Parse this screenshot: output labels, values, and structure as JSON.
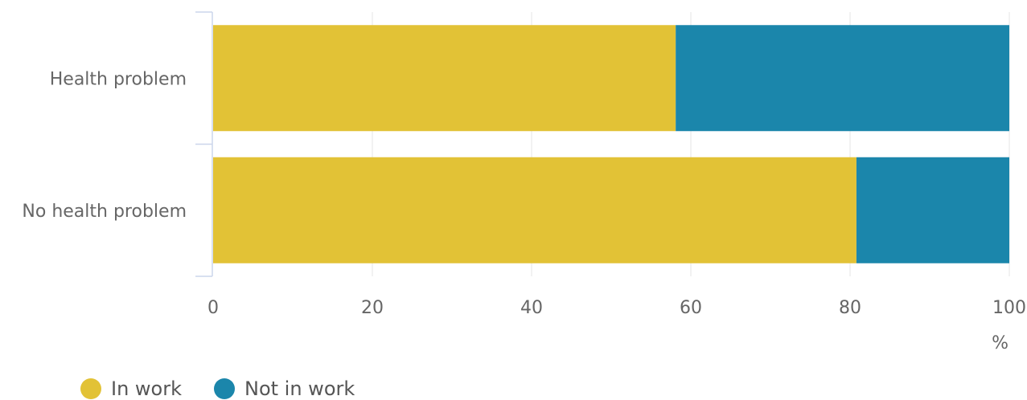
{
  "chart_data": {
    "type": "bar",
    "orientation": "horizontal",
    "stacked": true,
    "categories": [
      "Health problem",
      "No health problem"
    ],
    "series": [
      {
        "name": "In work",
        "values": [
          58.1,
          80.8
        ],
        "color": "#e2c236"
      },
      {
        "name": "Not in work",
        "values": [
          41.9,
          19.2
        ],
        "color": "#1b86ab"
      }
    ],
    "xlim": [
      0,
      100
    ],
    "xticks": [
      "0",
      "20",
      "40",
      "60",
      "80",
      "100"
    ],
    "xunit": "%",
    "grid": true,
    "legend_position": "bottom-left"
  }
}
